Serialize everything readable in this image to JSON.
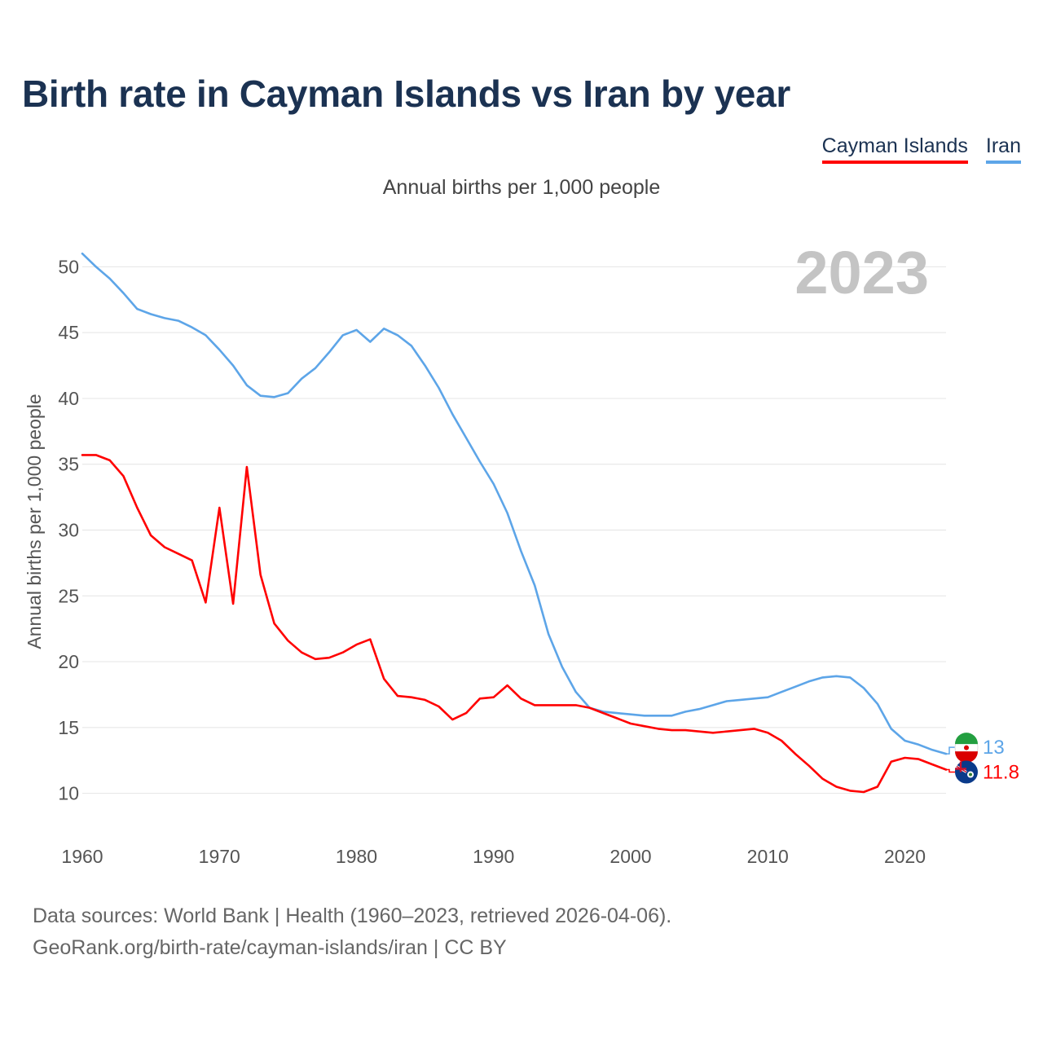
{
  "title": "Birth rate in Cayman Islands vs Iran by year",
  "subtitle": "Annual births per 1,000 people",
  "legend": [
    {
      "name": "Cayman Islands",
      "color": "#ff0000"
    },
    {
      "name": "Iran",
      "color": "#5da5e8"
    }
  ],
  "source": {
    "line1": "Data sources: World Bank | Health (1960–2023, retrieved 2026-04-06).",
    "line2": "GeoRank.org/birth-rate/cayman-islands/iran | CC BY"
  },
  "chart_data": {
    "type": "line",
    "title": "Birth rate in Cayman Islands vs Iran by year",
    "ylabel": "Annual births per 1,000 people",
    "xlabel": "",
    "year_label": "2023",
    "xlim": [
      1960,
      2023
    ],
    "ylim": [
      7.5,
      52.5
    ],
    "x_ticks": [
      1960,
      1970,
      1980,
      1990,
      2000,
      2010,
      2020
    ],
    "y_ticks": [
      10,
      15,
      20,
      25,
      30,
      35,
      40,
      45,
      50
    ],
    "grid": true,
    "x": [
      1960,
      1961,
      1962,
      1963,
      1964,
      1965,
      1966,
      1967,
      1968,
      1969,
      1970,
      1971,
      1972,
      1973,
      1974,
      1975,
      1976,
      1977,
      1978,
      1979,
      1980,
      1981,
      1982,
      1983,
      1984,
      1985,
      1986,
      1987,
      1988,
      1989,
      1990,
      1991,
      1992,
      1993,
      1994,
      1995,
      1996,
      1997,
      1998,
      1999,
      2000,
      2001,
      2002,
      2003,
      2004,
      2005,
      2006,
      2007,
      2008,
      2009,
      2010,
      2011,
      2012,
      2013,
      2014,
      2015,
      2016,
      2017,
      2018,
      2019,
      2020,
      2021,
      2022,
      2023
    ],
    "series": [
      {
        "name": "Iran",
        "color": "#5da5e8",
        "end_label": "13",
        "values": [
          51.0,
          50.0,
          49.1,
          48.0,
          46.8,
          46.4,
          46.1,
          45.9,
          45.4,
          44.8,
          43.7,
          42.5,
          41.0,
          40.2,
          40.1,
          40.4,
          41.5,
          42.3,
          43.5,
          44.8,
          45.2,
          44.3,
          45.3,
          44.8,
          44.0,
          42.5,
          40.8,
          38.8,
          37.0,
          35.2,
          33.5,
          31.3,
          28.4,
          25.8,
          22.1,
          19.6,
          17.7,
          16.5,
          16.2,
          16.1,
          16.0,
          15.9,
          15.9,
          15.9,
          16.2,
          16.4,
          16.7,
          17.0,
          17.1,
          17.2,
          17.3,
          17.7,
          18.1,
          18.5,
          18.8,
          18.9,
          18.8,
          18.0,
          16.8,
          14.9,
          14.0,
          13.7,
          13.3,
          13.0
        ]
      },
      {
        "name": "Cayman Islands",
        "color": "#ff0000",
        "end_label": "11.8",
        "values": [
          35.7,
          35.7,
          35.3,
          34.1,
          31.7,
          29.6,
          28.7,
          28.2,
          27.7,
          24.5,
          31.7,
          24.4,
          34.8,
          26.6,
          22.9,
          21.6,
          20.7,
          20.2,
          20.3,
          20.7,
          21.3,
          21.7,
          18.7,
          17.4,
          17.3,
          17.1,
          16.6,
          15.6,
          16.1,
          17.2,
          17.3,
          18.2,
          17.2,
          16.7,
          16.7,
          16.7,
          16.7,
          16.5,
          16.1,
          15.7,
          15.3,
          15.1,
          14.9,
          14.8,
          14.8,
          14.7,
          14.6,
          14.7,
          14.8,
          14.9,
          14.6,
          14.0,
          13.0,
          12.1,
          11.1,
          10.5,
          10.2,
          10.1,
          10.5,
          12.4,
          12.7,
          12.6,
          12.2,
          11.8
        ]
      }
    ]
  }
}
